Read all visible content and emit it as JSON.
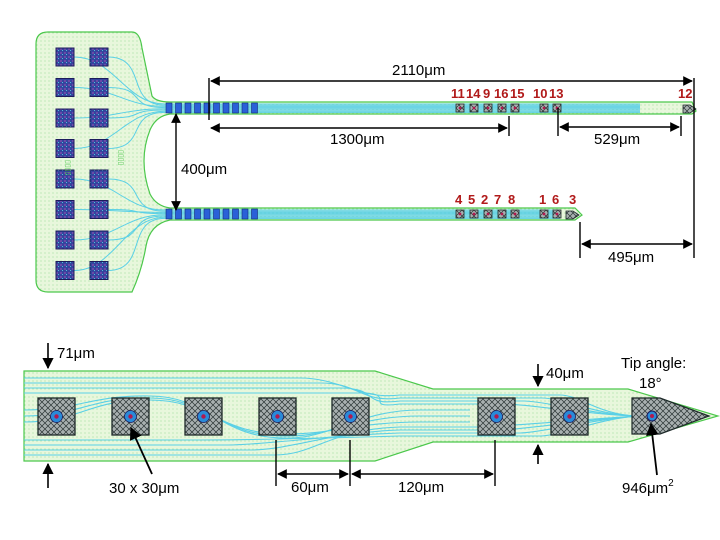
{
  "colors": {
    "substrate_fill": "#e8f7dc",
    "substrate_edge": "#4cc84c",
    "trace": "#5ad0e6",
    "pad_fill": "#2b3a9a",
    "pad_edge": "#1c1c5c",
    "contact_fill": "#2a60d8",
    "electrode_fill": "#9aa0a0",
    "electrode_edge": "#1e2a2a",
    "electrode_center": "#b01a50",
    "label_red": "#b11a1a",
    "arrow": "#000000"
  },
  "overview": {
    "dimensions": {
      "total_length": "2110μm",
      "spacing": "400μm",
      "upper_front_span": "1300μm",
      "upper_tip_span": "529μm",
      "lower_tip_span": "495μm"
    },
    "upper_shank_electrodes": [
      "11",
      "14",
      "9",
      "16",
      "15",
      "10",
      "13",
      "12"
    ],
    "lower_shank_electrodes": [
      "4",
      "5",
      "2",
      "7",
      "8",
      "1",
      "6",
      "3"
    ]
  },
  "detail": {
    "labels": {
      "shank_width": "71μm",
      "narrow_width": "40μm",
      "tip_angle_line1": "Tip angle:",
      "tip_angle_line2": "18°",
      "electrode_size": "30 x 30μm",
      "pitch_small": "60μm",
      "pitch_large": "120μm",
      "tip_area_value": "946μm",
      "tip_area_exp": "2"
    }
  }
}
